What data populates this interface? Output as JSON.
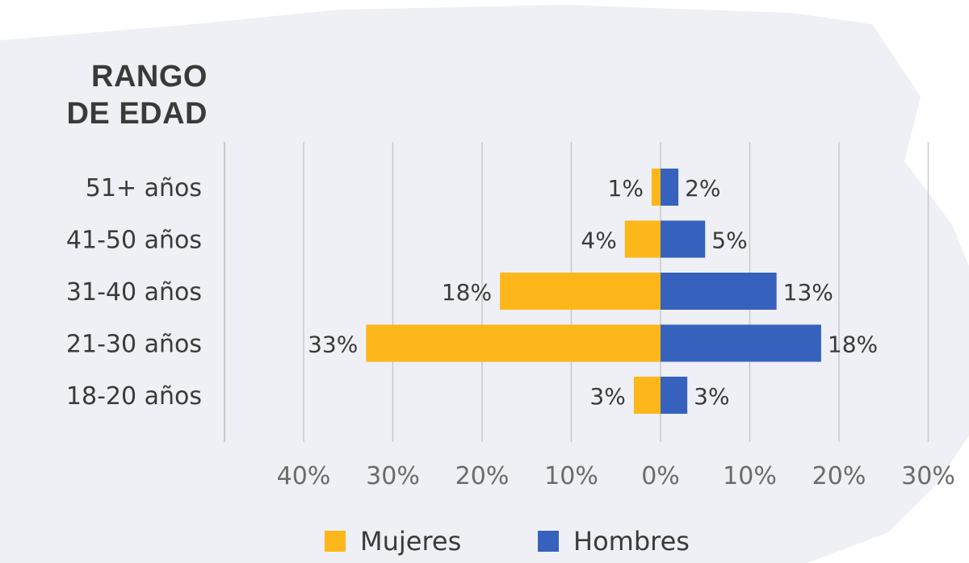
{
  "colors": {
    "mujeres": "#FDB71A",
    "hombres": "#3662BE",
    "grid": "#c9c9c9",
    "map_bg": "#eef0f5",
    "text": "#3a3a3a"
  },
  "chart_data": {
    "type": "bar",
    "orientation": "horizontal-diverging",
    "ylabel_lines": [
      "RANGO",
      "DE EDAD"
    ],
    "categories": [
      "51+ años",
      "41-50 años",
      "31-40 años",
      "21-30 años",
      "18-20 años"
    ],
    "series": [
      {
        "name": "Mujeres",
        "side": "left",
        "values": [
          1,
          4,
          18,
          33,
          3
        ],
        "labels": [
          "1%",
          "4%",
          "18%",
          "33%",
          "3%"
        ]
      },
      {
        "name": "Hombres",
        "side": "right",
        "values": [
          2,
          5,
          13,
          18,
          3
        ],
        "labels": [
          "2%",
          "5%",
          "13%",
          "18%",
          "3%"
        ]
      }
    ],
    "xlim": [
      -40,
      30
    ],
    "x_ticks": [
      {
        "value": -40,
        "label": "40%"
      },
      {
        "value": -30,
        "label": "30%"
      },
      {
        "value": -20,
        "label": "20%"
      },
      {
        "value": -10,
        "label": "10%"
      },
      {
        "value": 0,
        "label": "0%"
      },
      {
        "value": 10,
        "label": "10%"
      },
      {
        "value": 20,
        "label": "20%"
      },
      {
        "value": 30,
        "label": "30%"
      }
    ],
    "grid": true,
    "legend_position": "bottom-center"
  }
}
